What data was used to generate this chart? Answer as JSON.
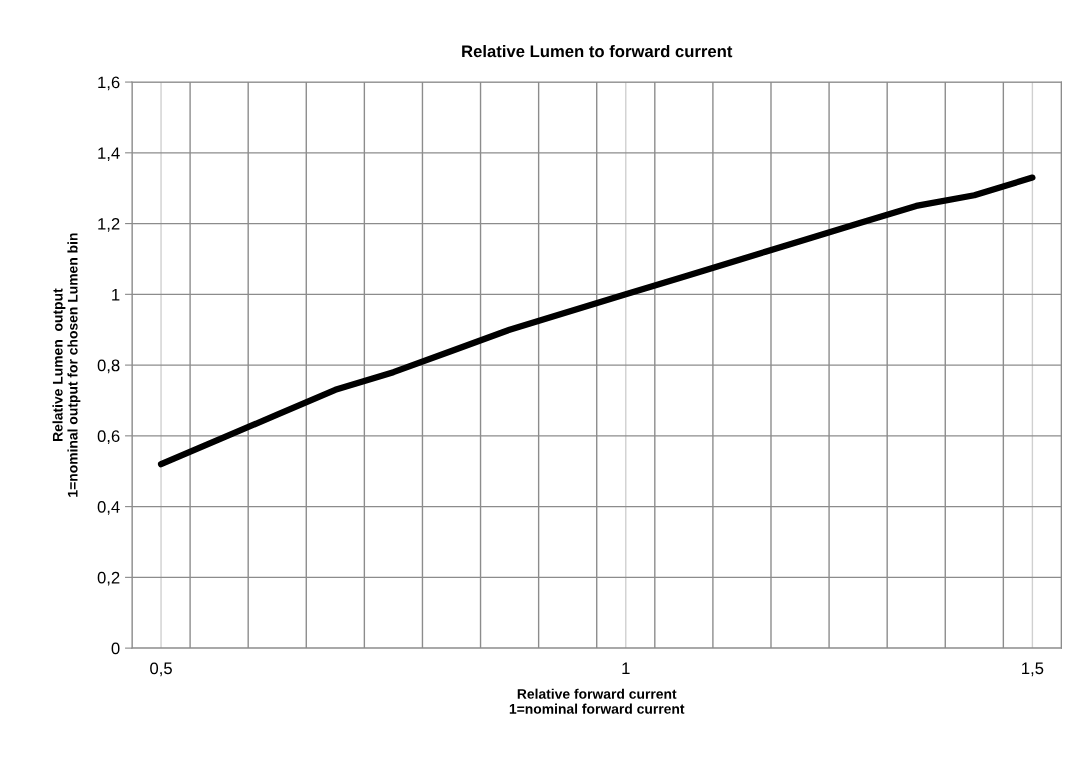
{
  "chart_data": {
    "type": "line",
    "title": "Relative Lumen to forward current",
    "xlabel": "Relative forward current\n1=nominal forward current",
    "ylabel": "Relative Lumen  output\n1=nominal output for chosen Lumen bin",
    "categories": [
      "0,5",
      null,
      null,
      null,
      null,
      null,
      null,
      null,
      "1",
      null,
      null,
      null,
      null,
      null,
      null,
      "1,5"
    ],
    "series": [
      {
        "color": "#000000",
        "values": [
          0.52,
          0.59,
          0.66,
          0.73,
          0.78,
          0.84,
          0.9,
          0.95,
          1.0,
          1.05,
          1.1,
          1.15,
          1.2,
          1.25,
          1.28,
          1.33
        ]
      }
    ],
    "ylim": [
      0,
      1.6
    ],
    "yticks": [
      0,
      {
        "value": 0.2,
        "label": "0,2"
      },
      {
        "value": 0.4,
        "label": "0,4"
      },
      {
        "value": 0.6,
        "label": "0,6"
      },
      {
        "value": 0.8,
        "label": "0,8"
      },
      1,
      {
        "value": 1.2,
        "label": "1,2"
      },
      {
        "value": 1.4,
        "label": "1,4"
      },
      {
        "value": 1.6,
        "label": "1,6"
      }
    ],
    "grid": true,
    "legend": false,
    "marker": "none",
    "line_style": "solid"
  }
}
